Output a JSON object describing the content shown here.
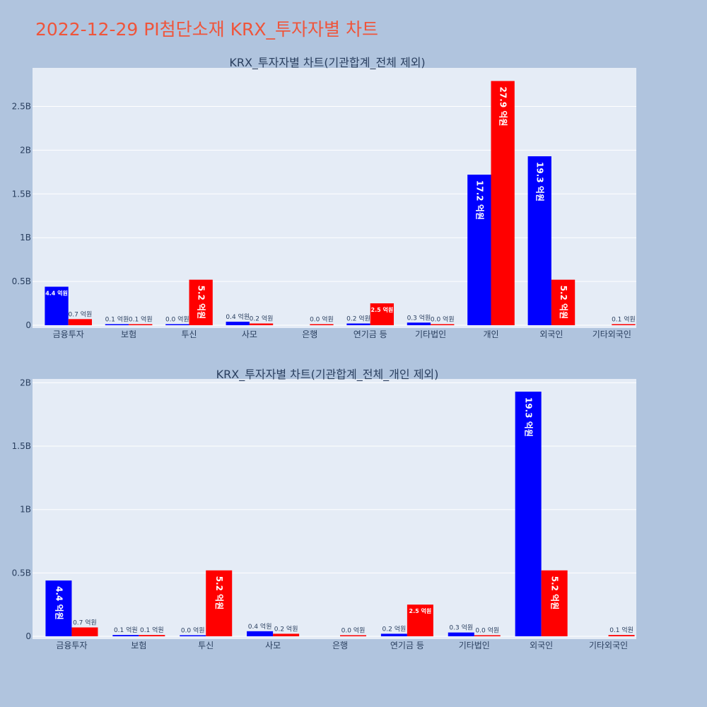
{
  "page_title": "2022-12-29 PI첨단소재 KRX_투자자별 차트",
  "colors": {
    "background": "#b0c4de",
    "plot_bg": "#e5ecf6",
    "title": "#ef553b",
    "series_a": "#0000ff",
    "series_b": "#ff0000"
  },
  "chart_data": [
    {
      "type": "bar",
      "title": "KRX_투자자별 차트(기관합계_전체 제외)",
      "categories": [
        "금융투자",
        "보험",
        "투신",
        "사모",
        "은행",
        "연기금 등",
        "기타법인",
        "개인",
        "외국인",
        "기타외국인"
      ],
      "series": [
        {
          "color": "#0000ff",
          "values": [
            440000000,
            10000000,
            0,
            40000000,
            null,
            20000000,
            30000000,
            1720000000,
            1930000000,
            null
          ],
          "labels": [
            "4.4 억원",
            "0.1 억원",
            "0.0 억원",
            "0.4 억원",
            null,
            "0.2 억원",
            "0.3 억원",
            "17.2 억원",
            "19.3 억원",
            null
          ]
        },
        {
          "color": "#ff0000",
          "values": [
            70000000,
            10000000,
            520000000,
            20000000,
            0,
            250000000,
            0,
            2790000000,
            520000000,
            10000000
          ],
          "labels": [
            "0.7 억원",
            "0.1 억원",
            "5.2 억원",
            "0.2 억원",
            "0.0 억원",
            "2.5 억원",
            "0.0 억원",
            "27.9 억원",
            "5.2 억원",
            "0.1 억원"
          ]
        }
      ],
      "ylim": [
        0,
        2940000000
      ],
      "yticks": [
        0,
        500000000,
        1000000000,
        1500000000,
        2000000000,
        2500000000
      ],
      "ytick_labels": [
        "0",
        "0.5B",
        "1B",
        "1.5B",
        "2B",
        "2.5B"
      ],
      "grid": true,
      "legend": "none"
    },
    {
      "type": "bar",
      "title": "KRX_투자자별 차트(기관합계_전체_개인 제외)",
      "categories": [
        "금융투자",
        "보험",
        "투신",
        "사모",
        "은행",
        "연기금 등",
        "기타법인",
        "외국인",
        "기타외국인"
      ],
      "series": [
        {
          "color": "#0000ff",
          "values": [
            440000000,
            10000000,
            0,
            40000000,
            null,
            20000000,
            30000000,
            1930000000,
            null
          ],
          "labels": [
            "4.4 억원",
            "0.1 억원",
            "0.0 억원",
            "0.4 억원",
            null,
            "0.2 억원",
            "0.3 억원",
            "19.3 억원",
            null
          ]
        },
        {
          "color": "#ff0000",
          "values": [
            70000000,
            10000000,
            520000000,
            20000000,
            0,
            250000000,
            0,
            520000000,
            10000000
          ],
          "labels": [
            "0.7 억원",
            "0.1 억원",
            "5.2 억원",
            "0.2 억원",
            "0.0 억원",
            "2.5 억원",
            "0.0 억원",
            "5.2 억원",
            "0.1 억원"
          ]
        }
      ],
      "ylim": [
        0,
        2030000000
      ],
      "yticks": [
        0,
        500000000,
        1000000000,
        1500000000,
        2000000000
      ],
      "ytick_labels": [
        "0",
        "0.5B",
        "1B",
        "1.5B",
        "2B"
      ],
      "grid": true,
      "legend": "none"
    }
  ]
}
